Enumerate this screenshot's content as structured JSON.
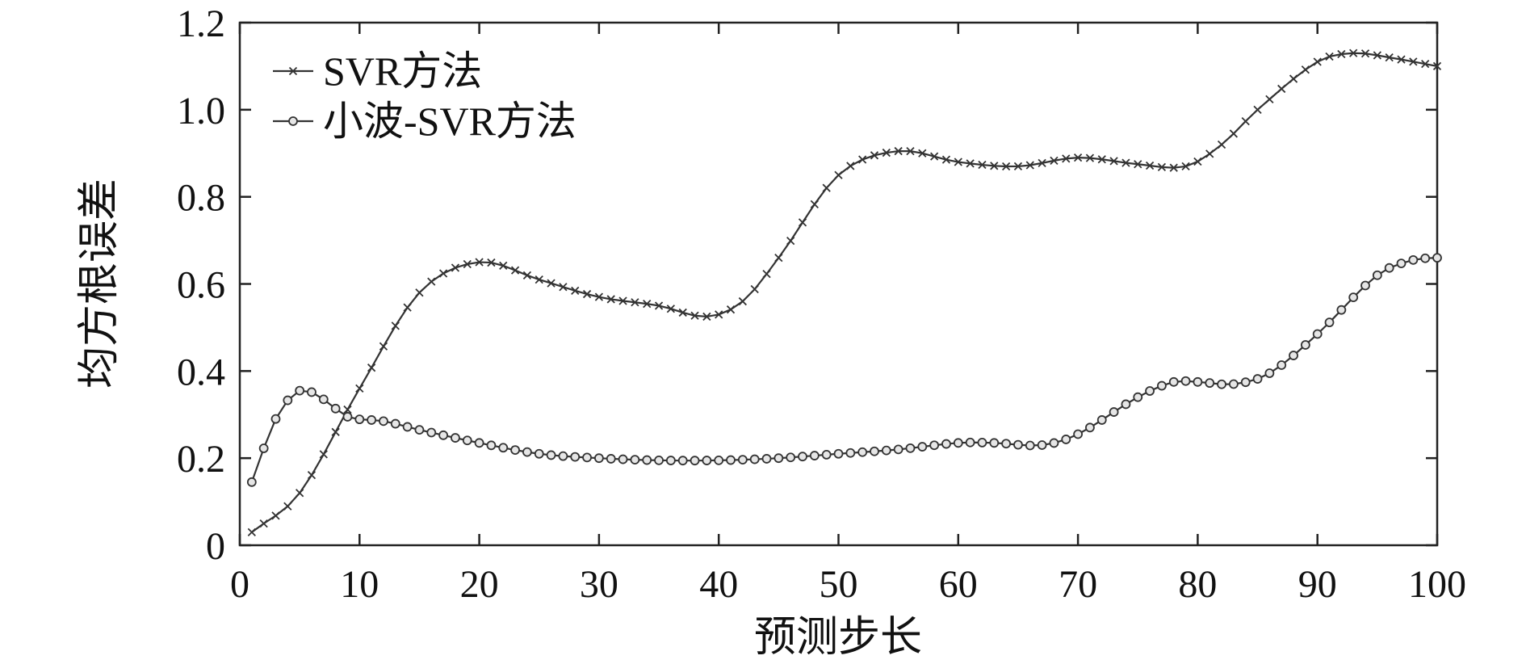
{
  "chart_data": {
    "type": "line",
    "title": "",
    "xlabel": "预测步长",
    "ylabel": "均方根误差",
    "xlim": [
      0,
      100
    ],
    "ylim": [
      0,
      1.2
    ],
    "x_ticks": [
      0,
      10,
      20,
      30,
      40,
      50,
      60,
      70,
      80,
      90,
      100
    ],
    "x_tick_labels": [
      "0",
      "10",
      "20",
      "30",
      "40",
      "50",
      "60",
      "70",
      "80",
      "90",
      "100"
    ],
    "y_ticks": [
      0,
      0.2,
      0.4,
      0.6,
      0.8,
      1.0,
      1.2
    ],
    "y_tick_labels": [
      "0",
      "0.2",
      "0.4",
      "0.6",
      "0.8",
      "1.0",
      "1.2"
    ],
    "grid": false,
    "legend_position": "top-left",
    "series": [
      {
        "name": "SVR方法",
        "marker": "x",
        "color": "#333333",
        "points": [
          [
            1,
            0.03
          ],
          [
            5,
            0.12
          ],
          [
            10,
            0.36
          ],
          [
            15,
            0.58
          ],
          [
            20,
            0.65
          ],
          [
            25,
            0.61
          ],
          [
            30,
            0.57
          ],
          [
            35,
            0.55
          ],
          [
            39,
            0.525
          ],
          [
            42,
            0.56
          ],
          [
            45,
            0.66
          ],
          [
            50,
            0.85
          ],
          [
            55,
            0.905
          ],
          [
            60,
            0.88
          ],
          [
            65,
            0.87
          ],
          [
            70,
            0.89
          ],
          [
            75,
            0.875
          ],
          [
            79,
            0.87
          ],
          [
            82,
            0.92
          ],
          [
            85,
            1.0
          ],
          [
            90,
            1.11
          ],
          [
            93,
            1.13
          ],
          [
            96,
            1.12
          ],
          [
            100,
            1.1
          ]
        ]
      },
      {
        "name": "小波-SVR方法",
        "marker": "o",
        "color": "#333333",
        "points": [
          [
            1,
            0.145
          ],
          [
            3,
            0.29
          ],
          [
            5,
            0.355
          ],
          [
            7,
            0.335
          ],
          [
            9,
            0.295
          ],
          [
            12,
            0.285
          ],
          [
            15,
            0.265
          ],
          [
            20,
            0.235
          ],
          [
            25,
            0.21
          ],
          [
            30,
            0.2
          ],
          [
            35,
            0.195
          ],
          [
            40,
            0.195
          ],
          [
            45,
            0.2
          ],
          [
            50,
            0.21
          ],
          [
            55,
            0.22
          ],
          [
            60,
            0.235
          ],
          [
            63,
            0.235
          ],
          [
            67,
            0.23
          ],
          [
            70,
            0.255
          ],
          [
            75,
            0.34
          ],
          [
            78,
            0.375
          ],
          [
            80,
            0.375
          ],
          [
            83,
            0.37
          ],
          [
            86,
            0.395
          ],
          [
            90,
            0.485
          ],
          [
            95,
            0.62
          ],
          [
            98,
            0.655
          ],
          [
            100,
            0.66
          ]
        ]
      }
    ]
  }
}
